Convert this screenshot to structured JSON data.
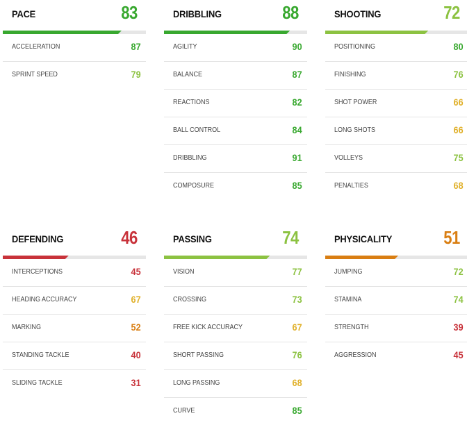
{
  "categories": [
    {
      "key": "pace",
      "title": "PACE",
      "value": "83",
      "color": "#38a82f",
      "fill": 0.83,
      "rows": [
        {
          "label": "ACCELERATION",
          "value": "87",
          "color": "#38a82f"
        },
        {
          "label": "SPRINT SPEED",
          "value": "79",
          "color": "#8cc241"
        }
      ]
    },
    {
      "key": "dribbling",
      "title": "DRIBBLING",
      "value": "88",
      "color": "#38a82f",
      "fill": 0.88,
      "rows": [
        {
          "label": "AGILITY",
          "value": "90",
          "color": "#38a82f"
        },
        {
          "label": "BALANCE",
          "value": "87",
          "color": "#38a82f"
        },
        {
          "label": "REACTIONS",
          "value": "82",
          "color": "#38a82f"
        },
        {
          "label": "BALL CONTROL",
          "value": "84",
          "color": "#38a82f"
        },
        {
          "label": "DRIBBLING",
          "value": "91",
          "color": "#38a82f"
        },
        {
          "label": "COMPOSURE",
          "value": "85",
          "color": "#38a82f"
        }
      ]
    },
    {
      "key": "shooting",
      "title": "SHOOTING",
      "value": "72",
      "color": "#8cc241",
      "fill": 0.72,
      "rows": [
        {
          "label": "POSITIONING",
          "value": "80",
          "color": "#38a82f"
        },
        {
          "label": "FINISHING",
          "value": "76",
          "color": "#8cc241"
        },
        {
          "label": "SHOT POWER",
          "value": "66",
          "color": "#e0b02a"
        },
        {
          "label": "LONG SHOTS",
          "value": "66",
          "color": "#e0b02a"
        },
        {
          "label": "VOLLEYS",
          "value": "75",
          "color": "#8cc241"
        },
        {
          "label": "PENALTIES",
          "value": "68",
          "color": "#e0b02a"
        }
      ]
    },
    {
      "key": "defending",
      "title": "DEFENDING",
      "value": "46",
      "color": "#c8323a",
      "fill": 0.46,
      "rows": [
        {
          "label": "INTERCEPTIONS",
          "value": "45",
          "color": "#c8323a"
        },
        {
          "label": "HEADING ACCURACY",
          "value": "67",
          "color": "#e0b02a"
        },
        {
          "label": "MARKING",
          "value": "52",
          "color": "#d97e12"
        },
        {
          "label": "STANDING TACKLE",
          "value": "40",
          "color": "#c8323a"
        },
        {
          "label": "SLIDING TACKLE",
          "value": "31",
          "color": "#c8323a"
        }
      ]
    },
    {
      "key": "passing",
      "title": "PASSING",
      "value": "74",
      "color": "#8cc241",
      "fill": 0.74,
      "rows": [
        {
          "label": "VISION",
          "value": "77",
          "color": "#8cc241"
        },
        {
          "label": "CROSSING",
          "value": "73",
          "color": "#8cc241"
        },
        {
          "label": "FREE KICK ACCURACY",
          "value": "67",
          "color": "#e0b02a"
        },
        {
          "label": "SHORT PASSING",
          "value": "76",
          "color": "#8cc241"
        },
        {
          "label": "LONG PASSING",
          "value": "68",
          "color": "#e0b02a"
        },
        {
          "label": "CURVE",
          "value": "85",
          "color": "#38a82f"
        }
      ]
    },
    {
      "key": "physicality",
      "title": "PHYSICALITY",
      "value": "51",
      "color": "#d97e12",
      "fill": 0.51,
      "rows": [
        {
          "label": "JUMPING",
          "value": "72",
          "color": "#8cc241"
        },
        {
          "label": "STAMINA",
          "value": "74",
          "color": "#8cc241"
        },
        {
          "label": "STRENGTH",
          "value": "39",
          "color": "#c8323a"
        },
        {
          "label": "AGGRESSION",
          "value": "45",
          "color": "#c8323a"
        }
      ]
    }
  ]
}
